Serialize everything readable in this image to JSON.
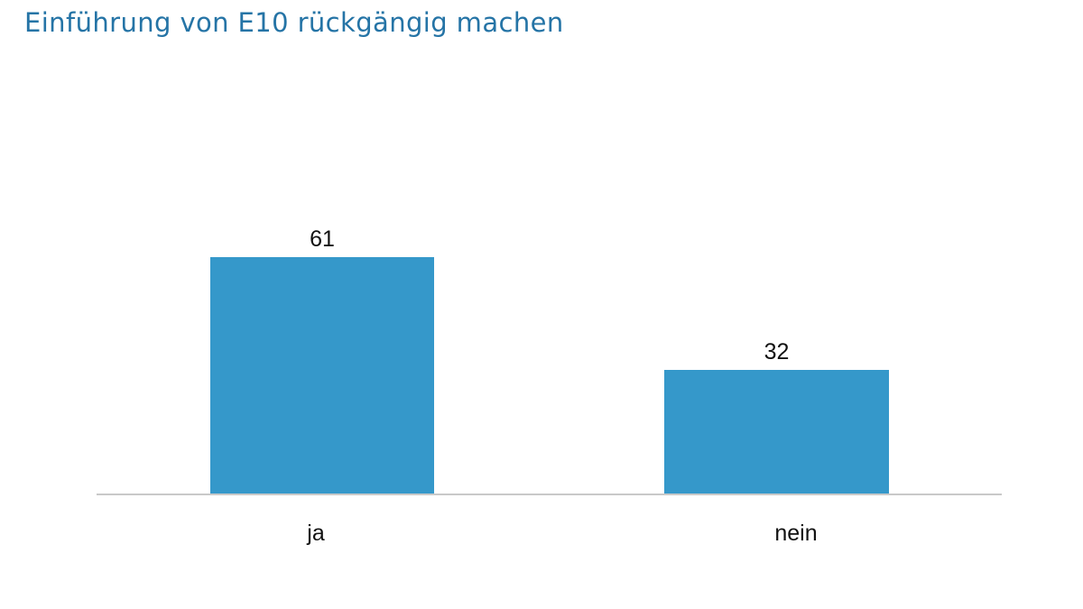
{
  "title": "Einführung von E10 rückgängig machen",
  "colors": {
    "title_text": "#2574a6",
    "bar_fill": "#3598ca",
    "axis_line": "#c9c9c9",
    "label_text": "#111111",
    "background": "#ffffff"
  },
  "chart_data": {
    "type": "bar",
    "title": "Einführung von E10 rückgängig machen",
    "categories": [
      "ja",
      "nein"
    ],
    "values": [
      61,
      32
    ],
    "value_labels": [
      "61",
      "32"
    ],
    "series_color": "#3598ca",
    "xlabel": "",
    "ylabel": "",
    "ylim": [
      0,
      65
    ],
    "grid": false,
    "legend": false,
    "orientation": "vertical",
    "value_label_position": "above-bar"
  }
}
